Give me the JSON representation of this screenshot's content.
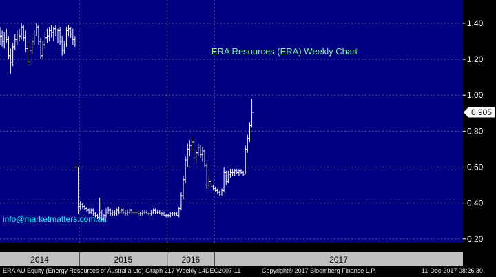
{
  "chart_data": {
    "type": "ohlc",
    "title": "ERA Resources (ERA) Weekly Chart",
    "watermark": "info@marketmatters.com.au",
    "last_price_label": "0.905",
    "x_labels": [
      "2014",
      "2015",
      "2016",
      "2017"
    ],
    "y_ticks": [
      "1.40",
      "1.20",
      "1.00",
      "0.80",
      "0.60",
      "0.40",
      "0.20"
    ],
    "y_tick_values": [
      1.4,
      1.2,
      1.0,
      0.8,
      0.6,
      0.4,
      0.2
    ],
    "ylim": [
      0.18,
      1.53
    ],
    "x_start": 2013.6,
    "x_end": 2017.92,
    "grid": true,
    "colors": {
      "background": "#000080",
      "grid": "#5a5aa0",
      "bars": "#ffffff",
      "title": "#7cfc9a",
      "watermark": "#00ffff",
      "axis_band": "#c0c0c0"
    },
    "series": [
      {
        "values": [
          [
            2013.6,
            1.32,
            1.38,
            1.28,
            1.33
          ],
          [
            2013.62,
            1.33,
            1.36,
            1.27,
            1.3
          ],
          [
            2013.64,
            1.3,
            1.35,
            1.26,
            1.34
          ],
          [
            2013.66,
            1.34,
            1.37,
            1.29,
            1.31
          ],
          [
            2013.68,
            1.31,
            1.33,
            1.2,
            1.22
          ],
          [
            2013.7,
            1.22,
            1.26,
            1.12,
            1.18
          ],
          [
            2013.72,
            1.18,
            1.29,
            1.16,
            1.27
          ],
          [
            2013.74,
            1.27,
            1.34,
            1.25,
            1.31
          ],
          [
            2013.76,
            1.31,
            1.36,
            1.28,
            1.34
          ],
          [
            2013.78,
            1.34,
            1.37,
            1.3,
            1.33
          ],
          [
            2013.8,
            1.33,
            1.4,
            1.31,
            1.38
          ],
          [
            2013.82,
            1.38,
            1.39,
            1.3,
            1.32
          ],
          [
            2013.84,
            1.32,
            1.36,
            1.24,
            1.26
          ],
          [
            2013.86,
            1.26,
            1.3,
            1.17,
            1.19
          ],
          [
            2013.88,
            1.19,
            1.27,
            1.18,
            1.25
          ],
          [
            2013.9,
            1.25,
            1.32,
            1.23,
            1.3
          ],
          [
            2013.92,
            1.3,
            1.36,
            1.28,
            1.34
          ],
          [
            2013.94,
            1.34,
            1.4,
            1.33,
            1.38
          ],
          [
            2013.96,
            1.38,
            1.39,
            1.28,
            1.3
          ],
          [
            2013.98,
            1.3,
            1.32,
            1.2,
            1.22
          ],
          [
            2014.0,
            1.22,
            1.3,
            1.2,
            1.28
          ],
          [
            2014.02,
            1.28,
            1.35,
            1.26,
            1.32
          ],
          [
            2014.04,
            1.32,
            1.37,
            1.29,
            1.33
          ],
          [
            2014.06,
            1.33,
            1.38,
            1.3,
            1.36
          ],
          [
            2014.08,
            1.36,
            1.39,
            1.32,
            1.35
          ],
          [
            2014.1,
            1.35,
            1.38,
            1.3,
            1.37
          ],
          [
            2014.12,
            1.37,
            1.39,
            1.33,
            1.34
          ],
          [
            2014.14,
            1.34,
            1.37,
            1.29,
            1.36
          ],
          [
            2014.16,
            1.36,
            1.38,
            1.28,
            1.3
          ],
          [
            2014.18,
            1.3,
            1.33,
            1.22,
            1.25
          ],
          [
            2014.2,
            1.25,
            1.3,
            1.23,
            1.29
          ],
          [
            2014.22,
            1.29,
            1.38,
            1.27,
            1.36
          ],
          [
            2014.24,
            1.36,
            1.39,
            1.33,
            1.37
          ],
          [
            2014.26,
            1.37,
            1.38,
            1.32,
            1.34
          ],
          [
            2014.28,
            1.34,
            1.37,
            1.28,
            1.31
          ],
          [
            2014.3,
            1.31,
            1.33,
            1.27,
            1.29
          ],
          [
            2014.31,
            1.29,
            0.62,
            0.58,
            0.6
          ],
          [
            2014.33,
            0.6,
            0.6,
            0.34,
            0.38
          ],
          [
            2014.35,
            0.38,
            0.41,
            0.36,
            0.39
          ],
          [
            2014.37,
            0.39,
            0.4,
            0.37,
            0.38
          ],
          [
            2014.39,
            0.38,
            0.39,
            0.36,
            0.37
          ],
          [
            2014.41,
            0.37,
            0.38,
            0.35,
            0.36
          ],
          [
            2014.43,
            0.36,
            0.37,
            0.34,
            0.35
          ],
          [
            2014.45,
            0.35,
            0.37,
            0.34,
            0.36
          ],
          [
            2014.47,
            0.36,
            0.37,
            0.33,
            0.34
          ],
          [
            2014.49,
            0.34,
            0.35,
            0.32,
            0.33
          ],
          [
            2014.51,
            0.33,
            0.34,
            0.31,
            0.32
          ],
          [
            2014.53,
            0.32,
            0.43,
            0.31,
            0.35
          ],
          [
            2014.55,
            0.35,
            0.36,
            0.3,
            0.31
          ],
          [
            2014.57,
            0.31,
            0.34,
            0.3,
            0.33
          ],
          [
            2014.59,
            0.33,
            0.37,
            0.32,
            0.35
          ],
          [
            2014.61,
            0.35,
            0.38,
            0.34,
            0.36
          ],
          [
            2014.63,
            0.36,
            0.37,
            0.33,
            0.34
          ],
          [
            2014.65,
            0.34,
            0.36,
            0.33,
            0.35
          ],
          [
            2014.67,
            0.35,
            0.36,
            0.33,
            0.34
          ],
          [
            2014.69,
            0.34,
            0.37,
            0.33,
            0.36
          ],
          [
            2014.71,
            0.36,
            0.38,
            0.34,
            0.35
          ],
          [
            2014.73,
            0.35,
            0.37,
            0.34,
            0.36
          ],
          [
            2014.75,
            0.36,
            0.37,
            0.34,
            0.35
          ],
          [
            2014.77,
            0.35,
            0.36,
            0.33,
            0.34
          ],
          [
            2014.79,
            0.34,
            0.36,
            0.33,
            0.35
          ],
          [
            2014.81,
            0.35,
            0.37,
            0.34,
            0.36
          ],
          [
            2014.83,
            0.36,
            0.37,
            0.34,
            0.35
          ],
          [
            2014.85,
            0.35,
            0.36,
            0.34,
            0.35
          ],
          [
            2014.87,
            0.35,
            0.36,
            0.34,
            0.35
          ],
          [
            2014.89,
            0.35,
            0.36,
            0.33,
            0.34
          ],
          [
            2014.91,
            0.34,
            0.35,
            0.33,
            0.34
          ],
          [
            2014.93,
            0.34,
            0.36,
            0.33,
            0.35
          ],
          [
            2014.95,
            0.35,
            0.36,
            0.34,
            0.35
          ],
          [
            2014.97,
            0.35,
            0.36,
            0.34,
            0.34
          ],
          [
            2014.99,
            0.34,
            0.35,
            0.33,
            0.34
          ],
          [
            2015.01,
            0.34,
            0.36,
            0.33,
            0.35
          ],
          [
            2015.03,
            0.35,
            0.37,
            0.34,
            0.36
          ],
          [
            2015.05,
            0.36,
            0.37,
            0.34,
            0.35
          ],
          [
            2015.07,
            0.35,
            0.36,
            0.34,
            0.35
          ],
          [
            2015.09,
            0.35,
            0.36,
            0.34,
            0.34
          ],
          [
            2015.11,
            0.34,
            0.35,
            0.33,
            0.34
          ],
          [
            2015.13,
            0.34,
            0.35,
            0.33,
            0.33
          ],
          [
            2015.15,
            0.33,
            0.34,
            0.32,
            0.33
          ],
          [
            2015.17,
            0.33,
            0.34,
            0.32,
            0.33
          ],
          [
            2015.19,
            0.33,
            0.35,
            0.32,
            0.34
          ],
          [
            2015.21,
            0.34,
            0.35,
            0.33,
            0.34
          ],
          [
            2015.23,
            0.34,
            0.35,
            0.33,
            0.34
          ],
          [
            2015.25,
            0.34,
            0.35,
            0.33,
            0.33
          ],
          [
            2015.27,
            0.33,
            0.38,
            0.32,
            0.37
          ],
          [
            2015.29,
            0.37,
            0.46,
            0.36,
            0.44
          ],
          [
            2015.31,
            0.44,
            0.55,
            0.42,
            0.53
          ],
          [
            2015.33,
            0.53,
            0.66,
            0.51,
            0.64
          ],
          [
            2015.35,
            0.64,
            0.73,
            0.6,
            0.7
          ],
          [
            2015.37,
            0.7,
            0.75,
            0.66,
            0.72
          ],
          [
            2015.39,
            0.72,
            0.77,
            0.68,
            0.74
          ],
          [
            2015.41,
            0.74,
            0.76,
            0.63,
            0.65
          ],
          [
            2015.43,
            0.65,
            0.7,
            0.62,
            0.68
          ],
          [
            2015.45,
            0.68,
            0.73,
            0.66,
            0.71
          ],
          [
            2015.47,
            0.71,
            0.72,
            0.65,
            0.67
          ],
          [
            2015.49,
            0.67,
            0.71,
            0.63,
            0.69
          ],
          [
            2015.51,
            0.69,
            0.7,
            0.6,
            0.61
          ],
          [
            2015.53,
            0.61,
            0.62,
            0.48,
            0.5
          ],
          [
            2015.55,
            0.5,
            0.55,
            0.48,
            0.52
          ],
          [
            2015.57,
            0.52,
            0.53,
            0.48,
            0.49
          ],
          [
            2015.59,
            0.49,
            0.5,
            0.47,
            0.48
          ],
          [
            2015.61,
            0.48,
            0.49,
            0.46,
            0.47
          ],
          [
            2015.63,
            0.47,
            0.48,
            0.45,
            0.46
          ],
          [
            2015.65,
            0.46,
            0.47,
            0.44,
            0.45
          ],
          [
            2015.67,
            0.45,
            0.48,
            0.44,
            0.47
          ],
          [
            2015.69,
            0.47,
            0.6,
            0.46,
            0.57
          ],
          [
            2015.71,
            0.57,
            0.58,
            0.5,
            0.52
          ],
          [
            2015.73,
            0.52,
            0.58,
            0.51,
            0.56
          ],
          [
            2015.75,
            0.56,
            0.59,
            0.54,
            0.57
          ],
          [
            2015.77,
            0.57,
            0.59,
            0.55,
            0.57
          ],
          [
            2015.79,
            0.57,
            0.59,
            0.55,
            0.58
          ],
          [
            2015.81,
            0.58,
            0.59,
            0.56,
            0.57
          ],
          [
            2015.83,
            0.57,
            0.59,
            0.55,
            0.58
          ],
          [
            2015.85,
            0.58,
            0.59,
            0.56,
            0.57
          ],
          [
            2015.87,
            0.57,
            0.58,
            0.55,
            0.56
          ],
          [
            2015.89,
            0.56,
            0.72,
            0.56,
            0.7
          ],
          [
            2015.91,
            0.7,
            0.78,
            0.68,
            0.76
          ],
          [
            2015.93,
            0.76,
            0.85,
            0.74,
            0.83
          ],
          [
            2015.95,
            0.83,
            0.98,
            0.82,
            0.905
          ]
        ]
      }
    ],
    "x_label_positions": [
      2014.0,
      2015.0,
      2016.0,
      2017.0
    ]
  },
  "footer": {
    "left": "ERA AU Equity (Energy Resources of Australia Ltd) Graph 217  Weekly 14DEC2007-11",
    "middle": "Copyright® 2017 Bloomberg Finance L.P.",
    "right": "11-Dec-2017 08:26:30"
  }
}
